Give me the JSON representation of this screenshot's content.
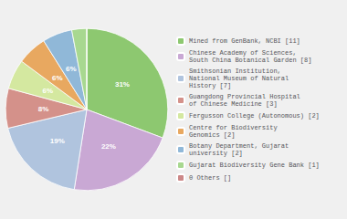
{
  "chart_data": {
    "type": "pie",
    "categories": [
      "Mined from GenBank, NCBI [11]",
      "Chinese Academy of Sciences,\nSouth China Botanical Garden [8]",
      "Smithsonian Institution,\nNational Museum of Natural\nHistory [7]",
      "Guangdong Provincial Hospital\nof Chinese Medicine [3]",
      "Fergusson College (Autonomous) [2]",
      "Centre for Biodiversity\nGenomics [2]",
      "Botany Department, Gujarat\nuniversity [2]",
      "Gujarat Biodiversity Gene Bank [1]",
      "0 Others []"
    ],
    "values": [
      31,
      22,
      19,
      8,
      6,
      6,
      6,
      3,
      0
    ],
    "value_labels": [
      "31%",
      "22%",
      "19%",
      "8%",
      "6%",
      "6%",
      "6%",
      null,
      null
    ],
    "colors": [
      "#8dc870",
      "#c9a8d4",
      "#b0c4de",
      "#d4918a",
      "#d4e8a0",
      "#e8a860",
      "#90b8d8",
      "#a8d890",
      "#cc8888"
    ],
    "data_labels": true,
    "legend": "right"
  }
}
